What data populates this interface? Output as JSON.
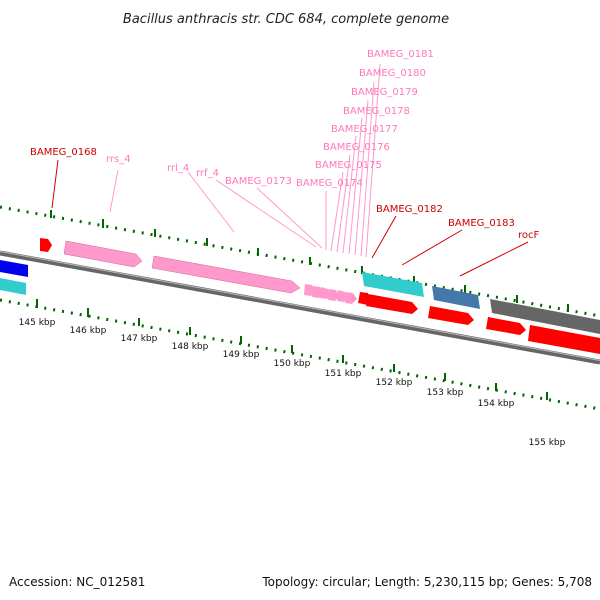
{
  "title": "Bacillus anthracis str. CDC 684, complete genome",
  "accession": "Accession: NC_012581",
  "summary": "Topology: circular; Length: 5,230,115 bp; Genes: 5,708",
  "colors": {
    "gene_red": "#ff0000",
    "label_red": "#cc0000",
    "rna_pink": "#ff99cc",
    "label_pink": "#ff77bb",
    "cyan": "#33cccc",
    "blue": "#0000ee",
    "steel": "#4477aa",
    "gray": "#666666",
    "ruler_green": "#006600"
  },
  "scale": {
    "unit": "kbp",
    "tick_labels": [
      "145 kbp",
      "146 kbp",
      "147 kbp",
      "148 kbp",
      "149 kbp",
      "150 kbp",
      "151 kbp",
      "152 kbp",
      "153 kbp",
      "154 kbp",
      "155 kbp"
    ]
  },
  "gene_labels": {
    "red": [
      "BAMEG_0168",
      "BAMEG_0182",
      "BAMEG_0183",
      "rocF"
    ],
    "pink": [
      "rrs_4",
      "rrl_4",
      "rrf_4",
      "BAMEG_0173",
      "BAMEG_0174",
      "BAMEG_0175",
      "BAMEG_0176",
      "BAMEG_0177",
      "BAMEG_0178",
      "BAMEG_0179",
      "BAMEG_0180",
      "BAMEG_0181"
    ]
  }
}
